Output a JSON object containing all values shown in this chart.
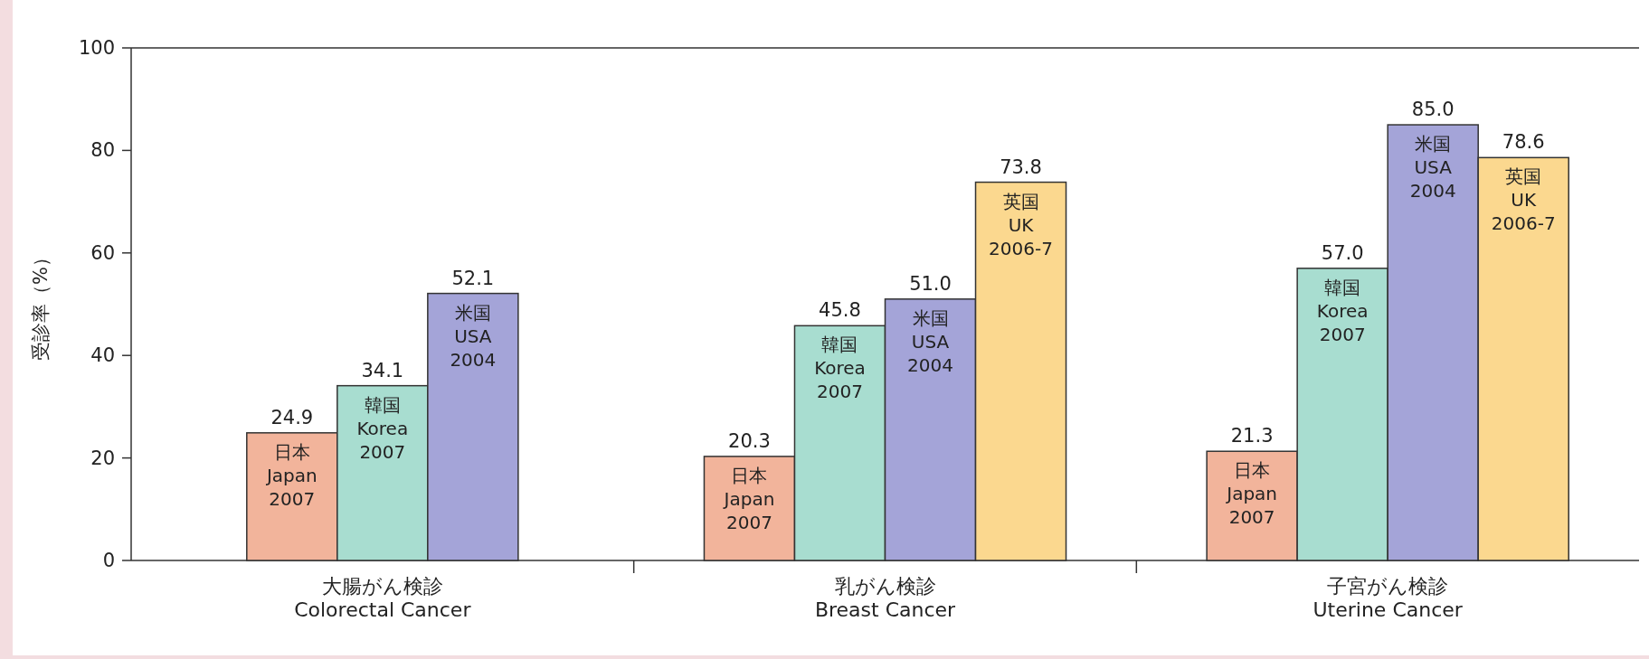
{
  "chart_data": {
    "type": "bar",
    "ylabel": "受診率（%）",
    "categories": [
      "大腸がん検診\nColorectal Cancer",
      "乳がん検診\nBreast Cancer",
      "子宮がん検診\nUterine Cancer"
    ],
    "series": [
      {
        "name": "日本\nJapan\n2007",
        "color": "#f2b49b",
        "values": [
          24.9,
          20.3,
          21.3
        ],
        "value_labels": [
          "24.9",
          "20.3",
          "21.3"
        ]
      },
      {
        "name": "韓国\nKorea\n2007",
        "color": "#a8ddd0",
        "values": [
          34.1,
          45.8,
          57.0
        ],
        "value_labels": [
          "34.1",
          "45.8",
          "57.0"
        ]
      },
      {
        "name": "米国\nUSA\n2004",
        "color": "#a4a4d8",
        "values": [
          52.1,
          51.0,
          85.0
        ],
        "value_labels": [
          "52.1",
          "51.0",
          "85.0"
        ]
      },
      {
        "name": "英国\nUK\n2006-7",
        "color": "#fbd88f",
        "values": [
          null,
          73.8,
          78.6
        ],
        "value_labels": [
          null,
          "73.8",
          "78.6"
        ]
      }
    ],
    "ylim": [
      0,
      100
    ],
    "yticks": [
      0,
      20,
      40,
      60,
      80,
      100
    ],
    "grid": false
  }
}
